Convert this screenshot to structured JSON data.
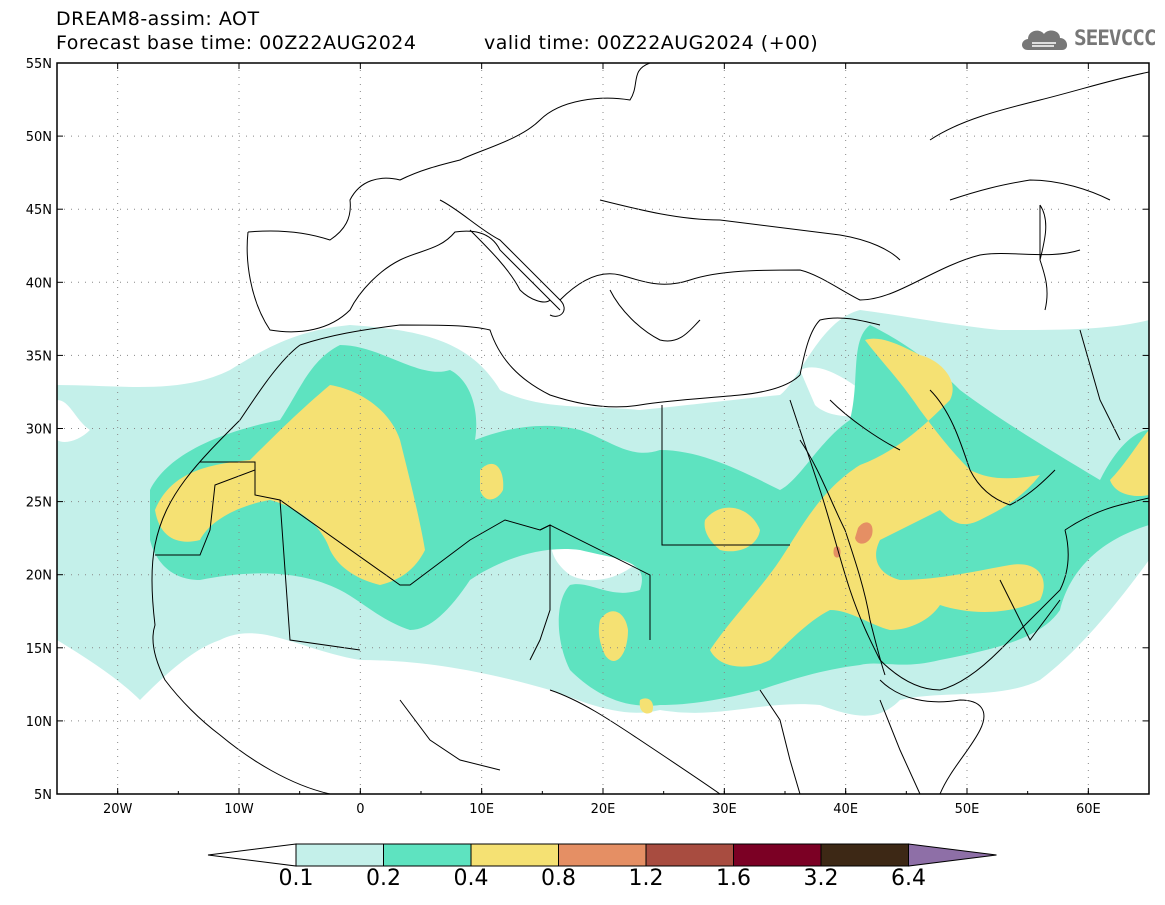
{
  "header": {
    "line1": "DREAM8-assim: AOT",
    "line2": "Forecast base time: 00Z22AUG2024",
    "line3": "valid time: 00Z22AUG2024 (+00)",
    "logo_text": "SEEVCCC"
  },
  "map": {
    "lon_range": [
      -25,
      65
    ],
    "lat_range": [
      5,
      55
    ],
    "lat_labels": [
      "55N",
      "50N",
      "45N",
      "40N",
      "35N",
      "30N",
      "25N",
      "20N",
      "15N",
      "10N",
      "5N"
    ],
    "lon_labels": [
      "20W",
      "10W",
      "0",
      "10E",
      "20E",
      "30E",
      "40E",
      "50E",
      "60E"
    ],
    "dotted_grid": true
  },
  "colorbar": {
    "labels": [
      "0.1",
      "0.2",
      "0.4",
      "0.8",
      "1.2",
      "1.6",
      "3.2",
      "6.4"
    ],
    "colors": [
      "#c4f0ea",
      "#5ee3c0",
      "#f5e173",
      "#e58f64",
      "#a84c40",
      "#7b0024",
      "#3d2815",
      "#8e6fa7"
    ],
    "under_color": "#ffffff"
  }
}
